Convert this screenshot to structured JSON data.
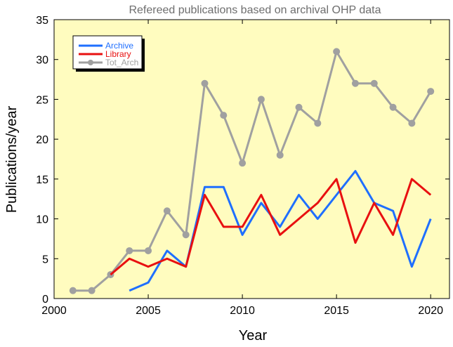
{
  "chart_data": {
    "type": "line",
    "title": "Refereed publications based on archival OHP data",
    "xlabel": "Year",
    "ylabel": "Publications/year",
    "xlim": [
      2000,
      2021
    ],
    "ylim": [
      0,
      35
    ],
    "xticks": [
      2000,
      2005,
      2010,
      2015,
      2020
    ],
    "yticks": [
      0,
      5,
      10,
      15,
      20,
      25,
      30,
      35
    ],
    "grid": false,
    "background_color": "#fffcbf",
    "legend_position": "top-left",
    "series": [
      {
        "name": "Archive",
        "color": "#1f6fff",
        "marker": "none",
        "x": [
          2004,
          2005,
          2006,
          2007,
          2008,
          2009,
          2010,
          2011,
          2012,
          2013,
          2014,
          2015,
          2016,
          2017,
          2018,
          2019,
          2020
        ],
        "y": [
          1,
          2,
          6,
          4,
          14,
          14,
          8,
          12,
          9,
          13,
          10,
          13,
          16,
          12,
          11,
          4,
          10
        ]
      },
      {
        "name": "Library",
        "color": "#e81010",
        "marker": "none",
        "x": [
          2003,
          2004,
          2005,
          2006,
          2007,
          2008,
          2009,
          2010,
          2011,
          2012,
          2013,
          2014,
          2015,
          2016,
          2017,
          2018,
          2019,
          2020
        ],
        "y": [
          3,
          5,
          4,
          5,
          4,
          13,
          9,
          9,
          13,
          8,
          10,
          12,
          15,
          7,
          12,
          8,
          15,
          13
        ]
      },
      {
        "name": "Tot_Arch",
        "color": "#a0a0a0",
        "marker": "circle",
        "x": [
          2001,
          2002,
          2003,
          2004,
          2005,
          2006,
          2007,
          2008,
          2009,
          2010,
          2011,
          2012,
          2013,
          2014,
          2015,
          2016,
          2017,
          2018,
          2019,
          2020
        ],
        "y": [
          1,
          1,
          3,
          6,
          6,
          11,
          8,
          27,
          23,
          17,
          25,
          18,
          24,
          22,
          31,
          27,
          27,
          24,
          22,
          26
        ]
      }
    ]
  }
}
